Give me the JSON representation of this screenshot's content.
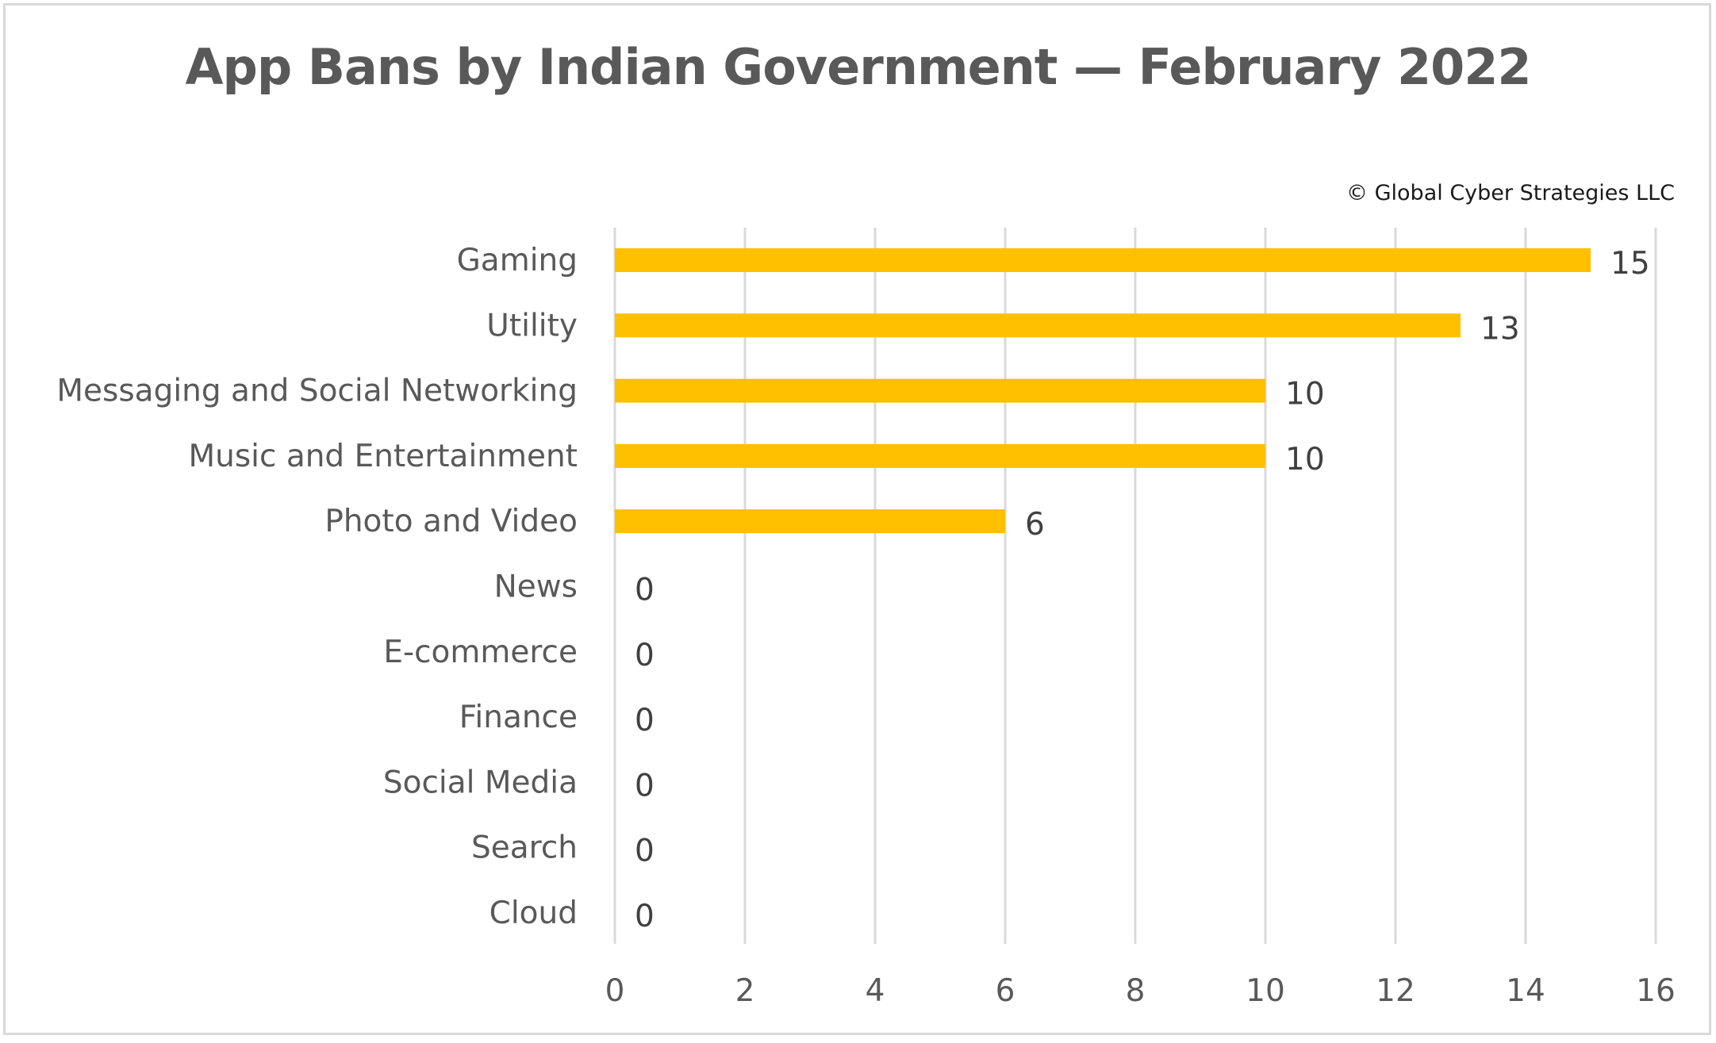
{
  "chart_data": {
    "type": "bar",
    "orientation": "horizontal",
    "title": "App Bans by Indian Government — February 2022",
    "credit": "© Global Cyber Strategies LLC",
    "categories": [
      "Gaming",
      "Utility",
      "Messaging and Social Networking",
      "Music and Entertainment",
      "Photo and Video",
      "News",
      "E-commerce",
      "Finance",
      "Social Media",
      "Search",
      "Cloud"
    ],
    "values": [
      15,
      13,
      10,
      10,
      6,
      0,
      0,
      0,
      0,
      0,
      0
    ],
    "xlim": [
      0,
      16
    ],
    "xticks": [
      0,
      2,
      4,
      6,
      8,
      10,
      12,
      14,
      16
    ],
    "xlabel": "",
    "ylabel": "",
    "grid": "vertical",
    "legend": "none",
    "data_labels": true,
    "bar_color": "#FFC000",
    "grid_color": "#d9d9d9"
  }
}
